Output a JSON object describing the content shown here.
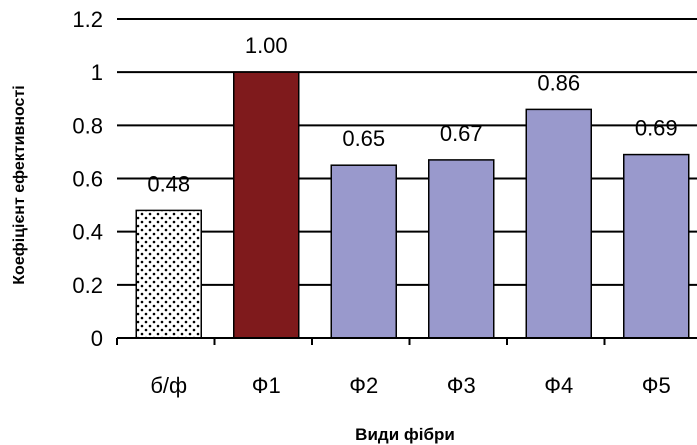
{
  "chart_data": {
    "type": "bar",
    "title": "",
    "xlabel": "Види фібри",
    "ylabel": "Коефіцієнт ефективності",
    "categories": [
      "б/ф",
      "Ф1",
      "Ф2",
      "Ф3",
      "Ф4",
      "Ф5"
    ],
    "values": [
      0.48,
      1.0,
      0.65,
      0.67,
      0.86,
      0.69
    ],
    "data_labels": [
      "0.48",
      "1.00",
      "0.65",
      "0.67",
      "0.86",
      "0.69"
    ],
    "yticks": [
      "0",
      "0.2",
      "0.4",
      "0.6",
      "0.8",
      "1",
      "1.2"
    ],
    "ylim": [
      0,
      1.2
    ],
    "grid": true,
    "legend": "none",
    "bar_colors": [
      "dotted-white",
      "#7f1a1c",
      "#9999cc",
      "#9999cc",
      "#9999cc",
      "#9999cc"
    ]
  }
}
